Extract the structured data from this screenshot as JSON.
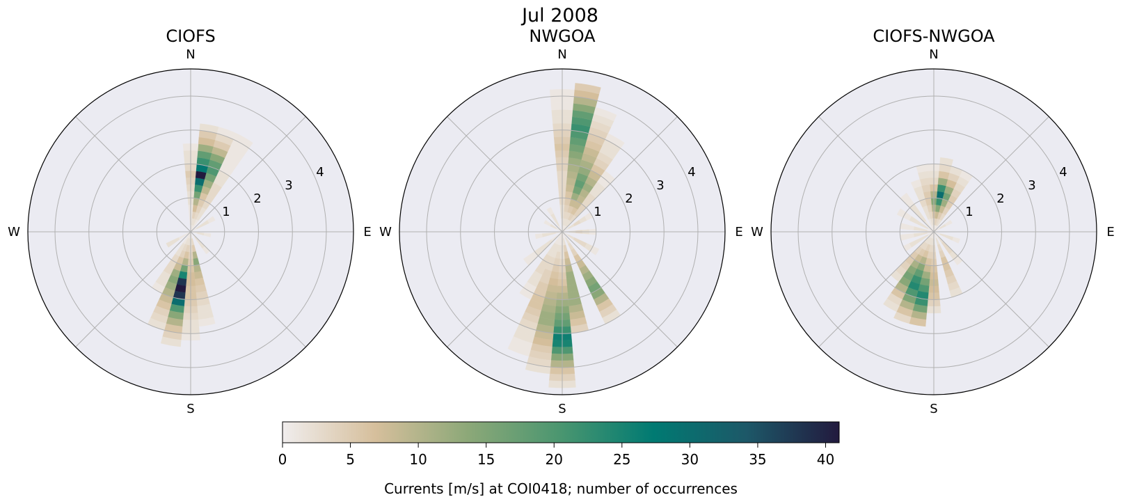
{
  "figure_title": "Jul 2008",
  "colors": {
    "axes_background": "#ebebf2",
    "grid": "#b0b0b0",
    "colormap": [
      "#f0eded",
      "#d6bf9c",
      "#8ca878",
      "#4a9670",
      "#007a72",
      "#1d5868",
      "#221a3e"
    ]
  },
  "chart_data": [
    {
      "type": "polar-heatmap",
      "title": "CIOFS",
      "direction_labels": {
        "n": "N",
        "e": "E",
        "s": "S",
        "w": "W"
      },
      "radial_ticks": [
        "1",
        "2",
        "3",
        "4"
      ],
      "radial_max": 4.8,
      "grid": true,
      "bin_width_m_s": 0.2,
      "sector_width_deg": 10,
      "sectors": [
        {
          "direction_deg": 10,
          "counts": [
            1,
            2,
            4,
            7,
            10,
            16,
            22,
            30,
            41,
            28,
            22,
            18,
            12,
            7,
            5,
            2
          ]
        },
        {
          "direction_deg": 20,
          "counts": [
            1,
            2,
            3,
            4,
            5,
            6,
            9,
            12,
            16,
            20,
            18,
            14,
            9,
            5,
            3,
            1
          ]
        },
        {
          "direction_deg": 30,
          "counts": [
            1,
            1,
            2,
            2,
            3,
            3,
            3,
            3,
            2,
            2,
            1,
            1,
            1,
            1,
            1,
            1
          ]
        },
        {
          "direction_deg": 0,
          "counts": [
            0,
            1,
            1,
            1,
            2,
            2,
            3,
            4,
            5,
            3,
            2,
            2,
            1
          ]
        },
        {
          "direction_deg": 60,
          "counts": [
            1,
            2,
            2,
            1
          ]
        },
        {
          "direction_deg": 100,
          "counts": [
            1,
            2,
            1
          ]
        },
        {
          "direction_deg": 140,
          "counts": [
            1,
            2,
            2,
            1
          ]
        },
        {
          "direction_deg": 170,
          "counts": [
            1,
            3,
            5,
            10,
            14,
            10,
            8,
            6,
            5,
            4,
            3,
            2,
            2,
            1
          ]
        },
        {
          "direction_deg": 180,
          "counts": [
            1,
            2,
            3,
            4,
            5,
            6,
            7,
            7,
            6,
            6,
            5,
            4,
            3,
            2,
            2,
            1
          ]
        },
        {
          "direction_deg": 190,
          "counts": [
            1,
            2,
            4,
            6,
            10,
            16,
            25,
            38,
            41,
            38,
            30,
            20,
            14,
            10,
            6,
            4,
            2
          ]
        },
        {
          "direction_deg": 200,
          "counts": [
            1,
            2,
            3,
            4,
            6,
            8,
            12,
            14,
            12,
            10,
            8,
            6,
            4,
            3,
            2
          ]
        },
        {
          "direction_deg": 210,
          "counts": [
            1,
            1,
            2,
            2,
            3,
            3,
            3,
            2,
            2,
            1
          ]
        },
        {
          "direction_deg": 240,
          "counts": [
            1,
            1,
            2,
            2
          ]
        }
      ]
    },
    {
      "type": "polar-heatmap",
      "title": "NWGOA",
      "direction_labels": {
        "n": "N",
        "e": "E",
        "s": "S",
        "w": "W"
      },
      "radial_ticks": [
        "1",
        "2",
        "3",
        "4"
      ],
      "radial_max": 4.8,
      "grid": true,
      "bin_width_m_s": 0.2,
      "sector_width_deg": 10,
      "sectors": [
        {
          "direction_deg": 0,
          "counts": [
            1,
            1,
            2,
            2,
            3,
            3,
            3,
            3,
            3,
            4,
            4,
            5,
            6,
            5,
            4,
            3,
            2,
            2,
            1,
            1,
            1
          ]
        },
        {
          "direction_deg": 10,
          "counts": [
            1,
            2,
            3,
            4,
            5,
            6,
            8,
            9,
            10,
            11,
            12,
            14,
            16,
            18,
            20,
            22,
            20,
            18,
            14,
            10,
            7,
            5
          ]
        },
        {
          "direction_deg": 20,
          "counts": [
            1,
            2,
            3,
            5,
            8,
            12,
            16,
            18,
            16,
            13,
            11,
            9,
            8,
            6,
            5,
            4,
            3,
            2,
            1
          ]
        },
        {
          "direction_deg": 30,
          "counts": [
            1,
            2,
            4,
            6,
            8,
            9,
            10,
            12,
            10,
            8,
            6,
            4,
            3,
            2,
            2,
            1
          ]
        },
        {
          "direction_deg": 40,
          "counts": [
            1,
            2,
            3,
            4,
            4,
            3,
            3,
            2,
            2,
            1,
            1
          ]
        },
        {
          "direction_deg": 60,
          "counts": [
            1,
            2,
            3,
            2,
            1
          ]
        },
        {
          "direction_deg": 90,
          "counts": [
            1,
            2,
            3,
            2,
            1
          ]
        },
        {
          "direction_deg": 120,
          "counts": [
            1,
            2,
            3,
            3,
            2,
            1
          ]
        },
        {
          "direction_deg": 150,
          "counts": [
            1,
            2,
            3,
            4,
            6,
            8,
            10,
            12,
            14,
            16,
            14,
            10,
            6,
            4,
            2
          ]
        },
        {
          "direction_deg": 170,
          "counts": [
            1,
            2,
            4,
            6,
            8,
            10,
            12,
            12,
            12,
            12,
            12,
            10,
            8,
            6,
            4
          ]
        },
        {
          "direction_deg": 180,
          "counts": [
            1,
            1,
            2,
            2,
            3,
            4,
            5,
            6,
            8,
            10,
            12,
            14,
            16,
            18,
            22,
            26,
            25,
            20,
            14,
            10,
            6,
            4,
            2
          ]
        },
        {
          "direction_deg": 190,
          "counts": [
            1,
            1,
            2,
            3,
            4,
            5,
            6,
            7,
            8,
            9,
            10,
            11,
            12,
            12,
            10,
            8,
            7,
            5,
            4,
            3,
            2
          ]
        },
        {
          "direction_deg": 200,
          "counts": [
            1,
            1,
            2,
            2,
            3,
            3,
            4,
            4,
            5,
            5,
            6,
            6,
            5,
            4,
            3,
            2,
            2,
            1,
            1
          ]
        },
        {
          "direction_deg": 210,
          "counts": [
            1,
            1,
            2,
            2,
            3,
            3,
            3,
            2,
            2,
            1,
            1
          ]
        },
        {
          "direction_deg": 230,
          "counts": [
            1,
            1,
            2,
            2,
            2,
            1,
            1
          ]
        },
        {
          "direction_deg": 260,
          "counts": [
            1,
            2,
            2,
            1
          ]
        },
        {
          "direction_deg": 300,
          "counts": [
            1,
            2,
            1
          ]
        },
        {
          "direction_deg": 330,
          "counts": [
            1,
            2,
            2,
            1
          ]
        }
      ]
    },
    {
      "type": "polar-heatmap",
      "title": "CIOFS-NWGOA",
      "direction_labels": {
        "n": "N",
        "e": "E",
        "s": "S",
        "w": "W"
      },
      "radial_ticks": [
        "1",
        "2",
        "3",
        "4"
      ],
      "radial_max": 4.8,
      "grid": true,
      "bin_width_m_s": 0.2,
      "sector_width_deg": 10,
      "sectors": [
        {
          "direction_deg": 0,
          "counts": [
            1,
            3,
            6,
            10,
            14,
            10,
            6,
            3,
            2,
            1
          ]
        },
        {
          "direction_deg": 10,
          "counts": [
            1,
            4,
            8,
            14,
            22,
            30,
            22,
            12,
            6,
            3,
            2
          ]
        },
        {
          "direction_deg": 20,
          "counts": [
            1,
            3,
            5,
            8,
            12,
            16,
            12,
            7,
            4,
            2
          ]
        },
        {
          "direction_deg": 30,
          "counts": [
            1,
            2,
            3,
            4,
            5,
            5,
            4,
            3,
            2,
            1
          ]
        },
        {
          "direction_deg": 350,
          "counts": [
            1,
            2,
            3,
            4,
            5,
            5,
            4,
            3,
            2,
            1
          ]
        },
        {
          "direction_deg": 340,
          "counts": [
            1,
            1,
            2,
            2,
            3,
            2,
            2,
            1
          ]
        },
        {
          "direction_deg": 320,
          "counts": [
            1,
            1,
            2,
            2,
            2,
            1,
            1
          ]
        },
        {
          "direction_deg": 300,
          "counts": [
            1,
            2,
            2,
            2,
            1,
            1
          ]
        },
        {
          "direction_deg": 280,
          "counts": [
            1,
            2,
            2,
            1,
            1
          ]
        },
        {
          "direction_deg": 260,
          "counts": [
            1,
            2,
            2,
            1,
            1
          ]
        },
        {
          "direction_deg": 240,
          "counts": [
            1,
            2,
            2,
            2,
            1
          ]
        },
        {
          "direction_deg": 60,
          "counts": [
            1,
            2,
            1
          ]
        },
        {
          "direction_deg": 110,
          "counts": [
            1,
            2,
            2,
            1
          ]
        },
        {
          "direction_deg": 140,
          "counts": [
            1,
            2,
            3,
            3,
            2,
            1
          ]
        },
        {
          "direction_deg": 160,
          "counts": [
            1,
            2,
            3,
            4,
            6,
            6,
            5,
            4,
            3,
            2
          ]
        },
        {
          "direction_deg": 180,
          "counts": [
            1,
            2,
            3,
            4,
            5,
            6,
            7,
            8,
            7,
            6,
            4,
            2
          ]
        },
        {
          "direction_deg": 190,
          "counts": [
            1,
            2,
            3,
            4,
            6,
            8,
            12,
            16,
            20,
            24,
            22,
            16,
            10,
            6
          ]
        },
        {
          "direction_deg": 200,
          "counts": [
            1,
            2,
            4,
            6,
            10,
            14,
            18,
            22,
            24,
            20,
            15,
            10,
            6,
            3
          ]
        },
        {
          "direction_deg": 210,
          "counts": [
            1,
            2,
            3,
            5,
            8,
            11,
            14,
            16,
            14,
            10,
            6,
            3,
            2
          ]
        },
        {
          "direction_deg": 220,
          "counts": [
            1,
            2,
            3,
            4,
            5,
            5,
            4,
            3,
            2
          ]
        }
      ]
    }
  ],
  "colorbar": {
    "label": "Currents [m/s] at COI0418; number of occurrences",
    "min": 0,
    "max": 41,
    "ticks": [
      "0",
      "5",
      "10",
      "15",
      "20",
      "25",
      "30",
      "35",
      "40"
    ]
  }
}
